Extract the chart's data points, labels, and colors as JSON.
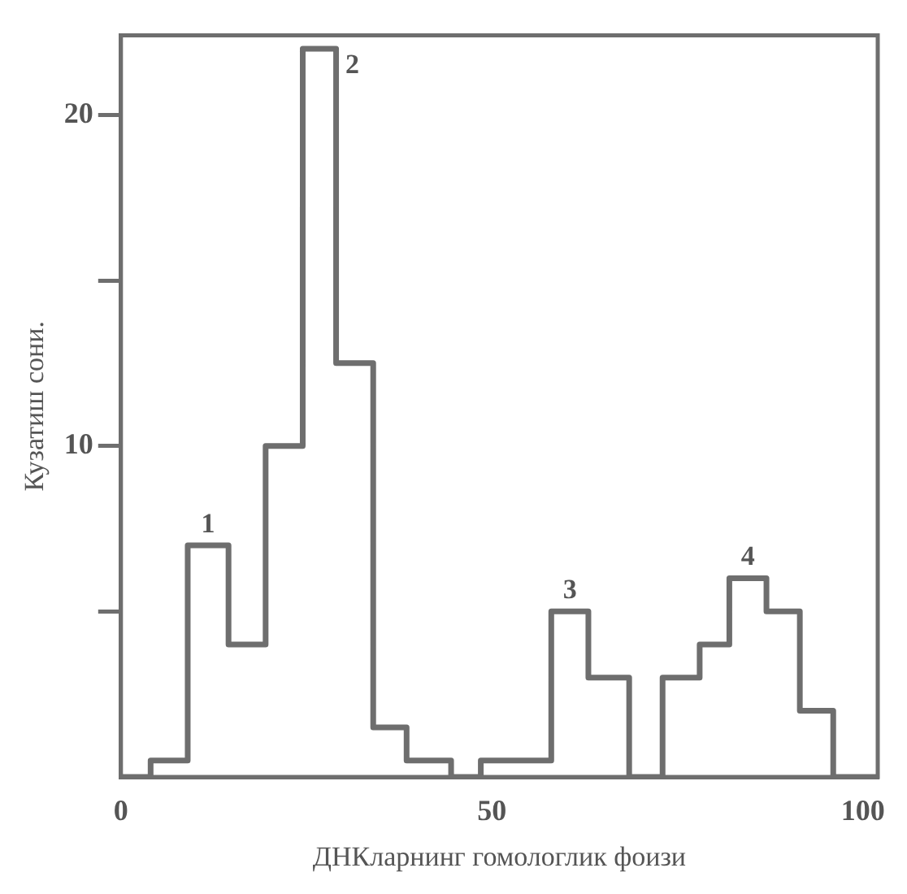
{
  "chart_data": {
    "type": "histogram",
    "xlabel": "ДНКларнинг гомологлик фоизи",
    "ylabel": "Кузатиш сони.",
    "bins": [
      0,
      4,
      9,
      14.5,
      19.5,
      24.5,
      29,
      34,
      38.5,
      44.5,
      48.5,
      58,
      63,
      68.5,
      73,
      78,
      82,
      87,
      91.5,
      96,
      102
    ],
    "values": [
      0,
      0.5,
      7,
      4,
      10,
      22,
      12.5,
      1.5,
      0.5,
      0,
      0.5,
      5,
      3,
      0,
      3,
      4,
      6,
      5,
      2,
      0
    ],
    "color": "#6e6e6e",
    "xlim": [
      0,
      102
    ],
    "ylim": [
      0,
      22.4
    ],
    "xticks": [
      0,
      50,
      100
    ],
    "yticks": [
      {
        "value": 5,
        "label": null
      },
      10,
      {
        "value": 15,
        "label": null
      },
      20
    ],
    "grid": false,
    "legend": false,
    "annotations": [
      {
        "text": "1",
        "x": 11.75,
        "y": 7
      },
      {
        "text": "2",
        "x": 26.75,
        "y": 22
      },
      {
        "text": "3",
        "x": 60.5,
        "y": 5
      },
      {
        "text": "4",
        "x": 84.5,
        "y": 6
      }
    ]
  }
}
